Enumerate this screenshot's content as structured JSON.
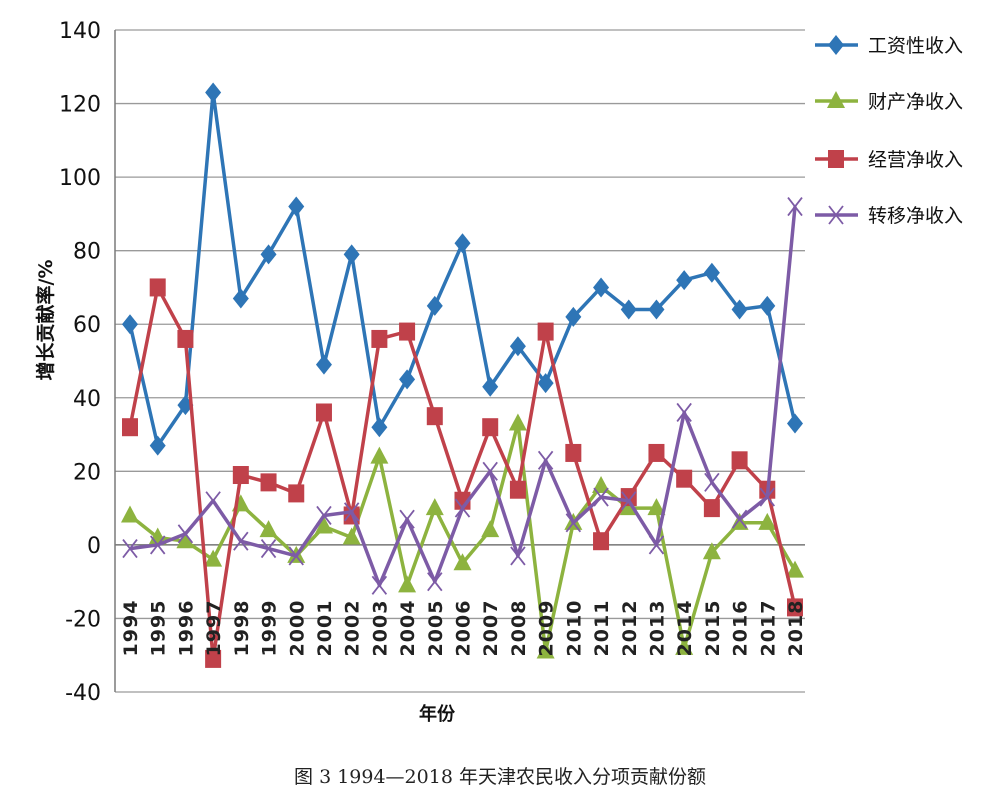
{
  "chart_data": {
    "type": "line",
    "xlabel": "年份",
    "ylabel": "增长贡献率/%",
    "ylim": [
      -40,
      140
    ],
    "yticks": [
      -40,
      -20,
      0,
      20,
      40,
      60,
      80,
      100,
      120,
      140
    ],
    "grid": true,
    "legend_position": "right",
    "x": [
      "1994",
      "1995",
      "1996",
      "1997",
      "1998",
      "1999",
      "2000",
      "2001",
      "2002",
      "2003",
      "2004",
      "2005",
      "2006",
      "2007",
      "2008",
      "2009",
      "2010",
      "2011",
      "2012",
      "2013",
      "2014",
      "2015",
      "2016",
      "2017",
      "2018"
    ],
    "series": [
      {
        "name": "工资性收入",
        "color": "#2E75B6",
        "marker": "diamond",
        "values": [
          60,
          27,
          38,
          123,
          67,
          79,
          92,
          49,
          79,
          32,
          45,
          65,
          82,
          43,
          54,
          44,
          62,
          70,
          64,
          64,
          72,
          74,
          64,
          65,
          33
        ]
      },
      {
        "name": "财产净收入",
        "color": "#8DB33F",
        "marker": "triangle",
        "values": [
          8,
          2,
          1,
          -4,
          11,
          4,
          -3,
          5,
          2,
          24,
          -11,
          10,
          -5,
          4,
          33,
          -29,
          6,
          16,
          10,
          10,
          -28,
          -2,
          6,
          6,
          -7
        ]
      },
      {
        "name": "经营净收入",
        "color": "#C0414A",
        "marker": "square",
        "values": [
          32,
          70,
          56,
          -31,
          19,
          17,
          14,
          36,
          8,
          56,
          58,
          35,
          12,
          32,
          15,
          58,
          25,
          1,
          13,
          25,
          18,
          10,
          23,
          15,
          -17
        ]
      },
      {
        "name": "转移净收入",
        "color": "#7D5BA6",
        "marker": "x",
        "values": [
          -1,
          0,
          3,
          12,
          1,
          -1,
          -3,
          8,
          9,
          -11,
          7,
          -10,
          10,
          20,
          -3,
          23,
          6,
          13,
          12,
          0,
          36,
          17,
          7,
          13,
          92
        ]
      }
    ]
  },
  "caption": "图 3   1994—2018 年天津农民收入分项贡献份额"
}
